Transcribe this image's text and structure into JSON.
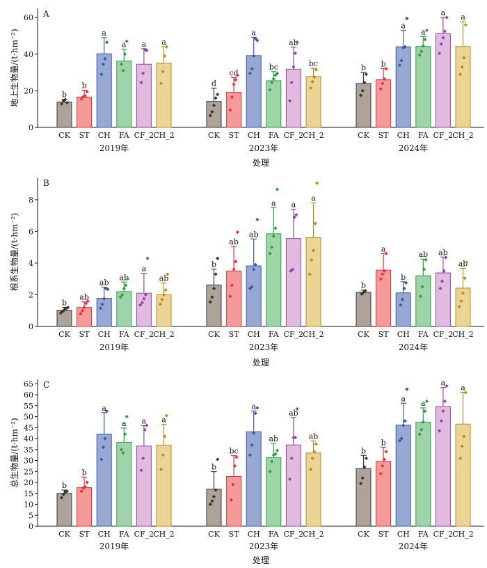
{
  "chart_data": [
    {
      "type": "bar",
      "panel_label": "A",
      "ylabel": "地上生物量/(t·hm⁻²)",
      "xlabel": "处理",
      "ylim": [
        0,
        65
      ],
      "yticks": [
        0,
        20,
        40,
        60
      ],
      "groups": [
        "2019年",
        "2023年",
        "2024年"
      ],
      "categories": [
        "CK",
        "ST",
        "CH",
        "FA",
        "CF_2",
        "CH_2"
      ],
      "values": [
        [
          13.8,
          16.5,
          40.2,
          36.2,
          34.5,
          35.0
        ],
        [
          14.2,
          19.2,
          39.2,
          25.5,
          31.8,
          27.8
        ],
        [
          24.0,
          26.0,
          44.0,
          44.2,
          51.2,
          44.2
        ]
      ],
      "errors": [
        [
          1.5,
          3.8,
          8.8,
          6.5,
          8.5,
          9.0
        ],
        [
          7.2,
          8.0,
          10.0,
          5.0,
          12.0,
          4.5
        ],
        [
          6.0,
          6.2,
          9.0,
          5.5,
          8.8,
          13.5
        ]
      ],
      "letters": [
        [
          "b",
          "b",
          "a",
          "a",
          "a",
          "a"
        ],
        [
          "d",
          "cd",
          "a",
          "bc",
          "ab",
          "bc"
        ],
        [
          "b",
          "b",
          "a",
          "a",
          "a",
          "a"
        ]
      ],
      "points": [
        [
          [
            12.8,
            14.5,
            15.2,
            13.5
          ],
          [
            15.5,
            16.8,
            17.2,
            19.5
          ],
          [
            29.0,
            34.5,
            37.5,
            46.5
          ],
          [
            34.5,
            31.0,
            40.0,
            47.0
          ],
          [
            24.5,
            29.5,
            42.5,
            42.0
          ],
          [
            24.0,
            30.5,
            39.0,
            44.0
          ]
        ],
        [
          [
            6.5,
            8.5,
            12.0,
            16.0,
            18.0
          ],
          [
            9.5,
            16.5,
            23.5,
            26.0,
            28.5
          ],
          [
            29.5,
            32.0,
            39.0,
            48.5,
            47.5
          ],
          [
            20.5,
            24.5,
            26.5,
            28.5,
            29.5
          ],
          [
            14.5,
            24.5,
            33.0,
            40.5,
            46.5
          ],
          [
            21.5,
            25.0,
            27.5,
            31.5
          ]
        ],
        [
          [
            17.5,
            20.0,
            24.5,
            29.0
          ],
          [
            21.0,
            24.0,
            26.5,
            32.0
          ],
          [
            34.0,
            36.5,
            43.5,
            44.0,
            59.5
          ],
          [
            39.5,
            41.5,
            44.5,
            48.0,
            53.0
          ],
          [
            40.5,
            45.5,
            49.0,
            52.5,
            60.0
          ],
          [
            29.0,
            33.0,
            38.0,
            56.0
          ]
        ]
      ]
    },
    {
      "type": "bar",
      "panel_label": "B",
      "ylabel": "根系生物量/(t·hm⁻²)",
      "xlabel": "处理",
      "ylim": [
        0,
        9.4
      ],
      "yticks": [
        0,
        2,
        4,
        6,
        8
      ],
      "groups": [
        "2019年",
        "2023年",
        "2024年"
      ],
      "categories": [
        "CK",
        "ST",
        "CH",
        "FA",
        "CF_2",
        "CH_2"
      ],
      "values": [
        [
          1.02,
          1.2,
          1.78,
          2.2,
          2.1,
          2.0
        ],
        [
          2.62,
          3.5,
          3.82,
          5.85,
          5.55,
          5.6
        ],
        [
          2.15,
          3.55,
          2.12,
          3.2,
          3.38,
          2.42
        ]
      ],
      "errors": [
        [
          0.18,
          0.35,
          0.7,
          0.6,
          1.25,
          0.75
        ],
        [
          1.0,
          1.55,
          1.7,
          1.65,
          1.85,
          2.2
        ],
        [
          0.15,
          1.05,
          0.7,
          1.05,
          1.0,
          1.25
        ]
      ],
      "letters": [
        [
          "b",
          "ab",
          "ab",
          "ab",
          "a",
          "ab"
        ],
        [
          "b",
          "ab",
          "ab",
          "a",
          "a",
          "a"
        ],
        [
          "b",
          "a",
          "b",
          "ab",
          "ab",
          "ab"
        ]
      ],
      "points": [
        [
          [
            0.85,
            0.95,
            1.05,
            1.15,
            1.2
          ],
          [
            0.8,
            1.0,
            1.2,
            1.45,
            1.6
          ],
          [
            1.15,
            1.4,
            1.75,
            2.4,
            2.35
          ],
          [
            1.85,
            2.0,
            2.4,
            2.6,
            3.0
          ],
          [
            1.35,
            1.5,
            1.75,
            2.0,
            4.3
          ],
          [
            1.4,
            1.7,
            2.0,
            2.3,
            3.3
          ]
        ],
        [
          [
            1.55,
            1.85,
            2.4,
            3.3,
            4.3
          ],
          [
            1.9,
            2.6,
            3.6,
            4.1,
            5.95
          ],
          [
            2.4,
            2.5,
            3.6,
            3.9,
            6.75
          ],
          [
            4.6,
            5.0,
            5.7,
            6.2,
            8.65
          ],
          [
            3.5,
            3.6,
            6.9,
            7.05
          ],
          [
            3.3,
            4.2,
            4.8,
            6.5,
            9.05
          ]
        ],
        [
          [
            2.05,
            2.15,
            2.25
          ],
          [
            3.0,
            3.3,
            3.5,
            4.6
          ],
          [
            1.35,
            1.7,
            2.4,
            2.75
          ],
          [
            1.9,
            2.5,
            3.6,
            4.2
          ],
          [
            2.4,
            2.85,
            3.5,
            4.35
          ],
          [
            1.25,
            1.6,
            2.1,
            3.05,
            4.05
          ]
        ]
      ]
    },
    {
      "type": "bar",
      "panel_label": "C",
      "ylabel": "总生物量/(t·hm⁻²)",
      "xlabel": "处理",
      "ylim": [
        0,
        67
      ],
      "yticks": [
        0,
        5,
        10,
        15,
        20,
        25,
        30,
        35,
        40,
        45,
        50,
        55,
        60,
        65
      ],
      "groups": [
        "2019年",
        "2023年",
        "2024年"
      ],
      "categories": [
        "CK",
        "ST",
        "CH",
        "FA",
        "CF_2",
        "CH_2"
      ],
      "values": [
        [
          15.0,
          17.6,
          42.0,
          38.3,
          36.6,
          37.0
        ],
        [
          16.9,
          22.7,
          43.1,
          31.3,
          37.1,
          33.4
        ],
        [
          26.3,
          29.6,
          46.1,
          47.5,
          54.6,
          46.6
        ]
      ],
      "errors": [
        [
          1.5,
          4.8,
          9.8,
          6.5,
          9.3,
          9.5
        ],
        [
          8.0,
          9.5,
          9.5,
          6.5,
          12.5,
          5.5
        ],
        [
          6.0,
          6.5,
          10.0,
          6.5,
          8.7,
          14.5
        ]
      ],
      "letters": [
        [
          "b",
          "b",
          "a",
          "a",
          "a",
          "a"
        ],
        [
          "b",
          "bc",
          "a",
          "ab",
          "ab",
          "ab"
        ],
        [
          "b",
          "b",
          "a",
          "a",
          "a",
          "a"
        ]
      ],
      "points": [
        [
          [
            13.0,
            14.5,
            15.5,
            16.0
          ],
          [
            16.0,
            17.5,
            18.0,
            20.0
          ],
          [
            30.5,
            36.0,
            40.0,
            52.5
          ],
          [
            35.0,
            33.5,
            42.0,
            50.0
          ],
          [
            25.5,
            31.0,
            44.0,
            46.0
          ],
          [
            26.0,
            32.5,
            41.0,
            50.5
          ]
        ],
        [
          [
            10.0,
            11.5,
            13.5,
            16.5,
            30.5
          ],
          [
            12.0,
            19.0,
            27.5,
            31.5
          ],
          [
            32.5,
            37.0,
            42.5,
            51.5,
            54.0
          ],
          [
            25.0,
            29.5,
            32.5,
            33.0,
            34.5
          ],
          [
            21.5,
            31.0,
            40.5,
            40.5,
            53.5
          ],
          [
            26.0,
            31.0,
            34.0,
            37.5
          ]
        ],
        [
          [
            19.5,
            22.0,
            27.0,
            31.0
          ],
          [
            24.0,
            27.5,
            30.5,
            34.0
          ],
          [
            39.0,
            40.0,
            46.0,
            48.0,
            62.5
          ],
          [
            42.0,
            44.0,
            47.5,
            52.5,
            57.0
          ],
          [
            43.5,
            48.0,
            52.5,
            57.0,
            64.0
          ],
          [
            31.0,
            36.5,
            41.0,
            61.0
          ]
        ]
      ]
    }
  ]
}
